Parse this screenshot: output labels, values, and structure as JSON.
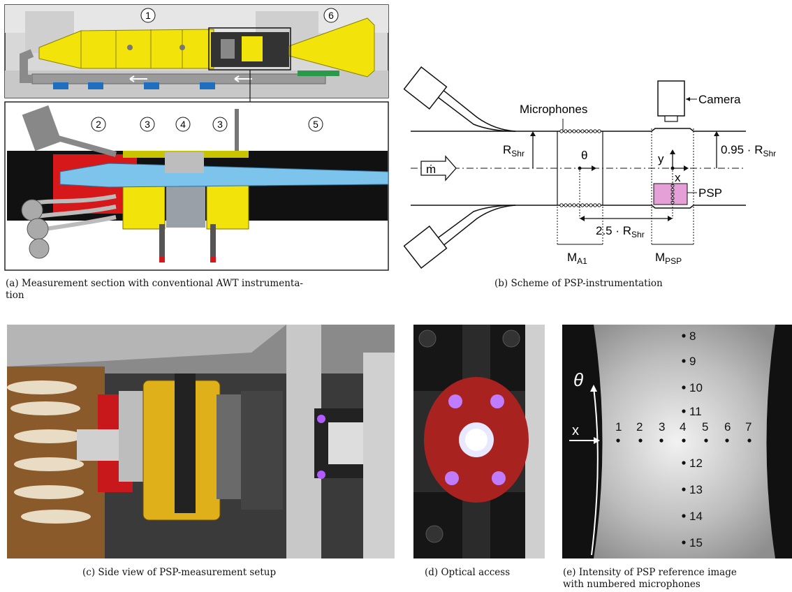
{
  "panel_a": {
    "top_markers": [
      "1",
      "6"
    ],
    "bottom_markers": [
      "2",
      "3",
      "4",
      "3",
      "5"
    ],
    "caption": "(a) Measurement section with conventional AWT instrumenta-\ntion"
  },
  "panel_b": {
    "microphones_label": "Microphones",
    "camera_label": "Camera",
    "r_shr": "R",
    "r_shr_sub": "Shr",
    "theta": "θ",
    "mdot": "ṁ",
    "y": "y",
    "x": "x",
    "r095_prefix": "0.95 · R",
    "r095_sub": "Shr",
    "psp": "PSP",
    "dist_prefix": "2.5 · R",
    "dist_sub": "Shr",
    "ma1": "M",
    "ma1_sub": "A1",
    "mpsp": "M",
    "mpsp_sub": "PSP",
    "caption": "(b) Scheme of PSP-instrumentation"
  },
  "panel_c": {
    "caption": "(c) Side view of PSP-measurement setup"
  },
  "panel_d": {
    "caption": "(d) Optical access"
  },
  "panel_e": {
    "theta": "θ",
    "x": "x",
    "row_labels": [
      "1",
      "2",
      "3",
      "4",
      "5",
      "6",
      "7"
    ],
    "col_labels": [
      "8",
      "9",
      "10",
      "11",
      "12",
      "13",
      "14",
      "15"
    ],
    "caption": "(e) Intensity of PSP reference image\nwith numbered microphones"
  }
}
